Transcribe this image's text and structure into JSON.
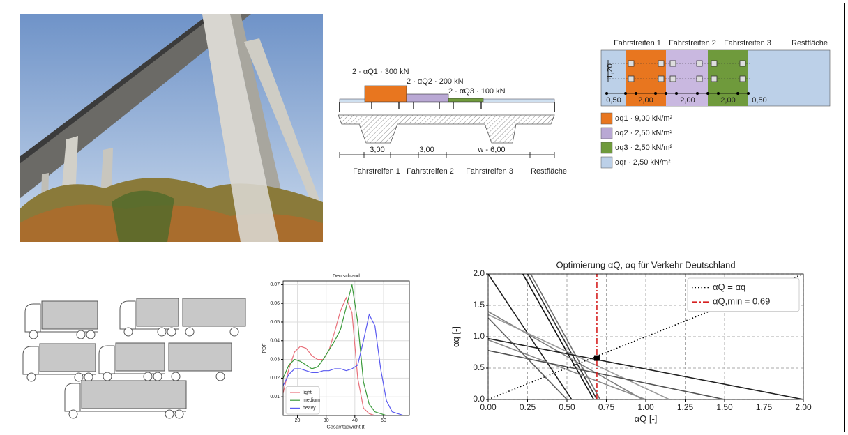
{
  "cross_section": {
    "loads": [
      "2 · αQ1 · 300 kN",
      "2 · αQ2 · 200 kN",
      "2 · αQ3 · 100 kN"
    ],
    "dimensions": [
      "3,00",
      "3,00",
      "w - 6,00"
    ],
    "lanes": [
      "Fahrstreifen 1",
      "Fahrstreifen 2",
      "Fahrstreifen 3",
      "Restfläche"
    ]
  },
  "plan": {
    "lanes": [
      "Fahrstreifen 1",
      "Fahrstreifen 2",
      "Fahrstreifen 3",
      "Restfläche"
    ],
    "width_label": "1,20",
    "dimensions": [
      "0,50",
      "2,00",
      "2,00",
      "2,00",
      "0,50"
    ],
    "legend": [
      {
        "label": "αq1 · 9,00 kN/m²",
        "color": "#e8761f"
      },
      {
        "label": "αq2 · 2,50 kN/m²",
        "color": "#b9a8d4"
      },
      {
        "label": "αq3 · 2,50 kN/m²",
        "color": "#6f9a3c"
      },
      {
        "label": "αqr · 2,50 kN/m²",
        "color": "#bcd0e8"
      }
    ]
  },
  "chart_data": [
    {
      "type": "line",
      "title": "Deutschland",
      "x_label": "Gesamtgewicht [t]",
      "y_label": "PDF",
      "x": [
        15,
        17,
        19,
        21,
        23,
        25,
        27,
        29,
        31,
        33,
        35,
        37,
        39,
        41,
        43,
        45,
        47,
        49,
        51,
        53,
        55,
        57
      ],
      "series": [
        {
          "name": "light",
          "color": "#e8707a",
          "values": [
            0.012,
            0.025,
            0.034,
            0.037,
            0.036,
            0.032,
            0.03,
            0.03,
            0.035,
            0.045,
            0.056,
            0.063,
            0.055,
            0.02,
            0.004,
            0.001,
            0,
            0,
            0,
            0,
            0,
            0
          ]
        },
        {
          "name": "medium",
          "color": "#3a9a3a",
          "values": [
            0.02,
            0.027,
            0.03,
            0.029,
            0.027,
            0.025,
            0.026,
            0.03,
            0.035,
            0.04,
            0.046,
            0.058,
            0.07,
            0.05,
            0.018,
            0.006,
            0.002,
            0.001,
            0,
            0,
            0,
            0
          ]
        },
        {
          "name": "heavy",
          "color": "#5a5af0",
          "values": [
            0.016,
            0.022,
            0.025,
            0.025,
            0.024,
            0.023,
            0.023,
            0.024,
            0.024,
            0.025,
            0.025,
            0.024,
            0.025,
            0.027,
            0.04,
            0.054,
            0.048,
            0.025,
            0.008,
            0.002,
            0.001,
            0
          ]
        }
      ],
      "xlim": [
        15,
        59
      ],
      "ylim": [
        0,
        0.072
      ],
      "xticks": [
        20,
        30,
        40,
        50
      ],
      "yticks": [
        0.01,
        0.02,
        0.03,
        0.04,
        0.05,
        0.06,
        0.07
      ],
      "grid": true,
      "legend": "lower left"
    },
    {
      "type": "line",
      "title": "Optimierung αQ, αq für Verkehr Deutschland",
      "x_label": "αQ [-]",
      "y_label": "αq [-]",
      "series": [
        {
          "name": "αQ = αq",
          "color": "#000000",
          "style": "dotted",
          "x": [
            0,
            2
          ],
          "values": [
            0,
            2
          ]
        },
        {
          "name": "αQ,min = 0.69",
          "color": "#d62020",
          "style": "dashdot",
          "x": [
            0.69,
            0.69
          ],
          "values": [
            0,
            2
          ]
        }
      ],
      "lines": [
        {
          "color": "#202020",
          "x": [
            0,
            0.53
          ],
          "values": [
            2,
            0
          ]
        },
        {
          "color": "#101010",
          "x": [
            0.22,
            0.67
          ],
          "values": [
            2,
            0
          ]
        },
        {
          "color": "#303030",
          "x": [
            0.25,
            0.69
          ],
          "values": [
            2,
            0
          ]
        },
        {
          "color": "#707070",
          "x": [
            0.27,
            0.71
          ],
          "values": [
            2,
            0
          ]
        },
        {
          "color": "#808080",
          "x": [
            0,
            0.98
          ],
          "values": [
            1.4,
            0
          ]
        },
        {
          "color": "#9a9a9a",
          "x": [
            0,
            1.15
          ],
          "values": [
            1.35,
            0
          ]
        },
        {
          "color": "#202020",
          "x": [
            0,
            2
          ],
          "values": [
            0.97,
            0
          ]
        },
        {
          "color": "#8a8a8a",
          "x": [
            0,
            1.0
          ],
          "values": [
            0.95,
            0
          ]
        },
        {
          "color": "#505050",
          "x": [
            0,
            1.5
          ],
          "values": [
            0.78,
            0
          ]
        },
        {
          "color": "#606060",
          "x": [
            0,
            0.5
          ],
          "values": [
            1.3,
            0
          ]
        }
      ],
      "point": {
        "x": 0.69,
        "y": 0.66
      },
      "xlim": [
        0,
        2
      ],
      "ylim": [
        0,
        2
      ],
      "xticks": [
        {
          "value": 0,
          "label": "0.00"
        },
        {
          "value": 0.25,
          "label": "0.25"
        },
        {
          "value": 0.5,
          "label": "0.50"
        },
        {
          "value": 0.75,
          "label": "0.75"
        },
        {
          "value": 1,
          "label": "1.00"
        },
        {
          "value": 1.25,
          "label": "1.25"
        },
        {
          "value": 1.5,
          "label": "1.50"
        },
        {
          "value": 1.75,
          "label": "1.75"
        },
        {
          "value": 2,
          "label": "2.00"
        }
      ],
      "yticks": [
        {
          "value": 0,
          "label": "0.0"
        },
        {
          "value": 0.5,
          "label": "0.5"
        },
        {
          "value": 1,
          "label": "1.0"
        },
        {
          "value": 1.5,
          "label": "1.5"
        },
        {
          "value": 2,
          "label": "2.0"
        }
      ],
      "grid": true,
      "legend": "upper right"
    }
  ]
}
